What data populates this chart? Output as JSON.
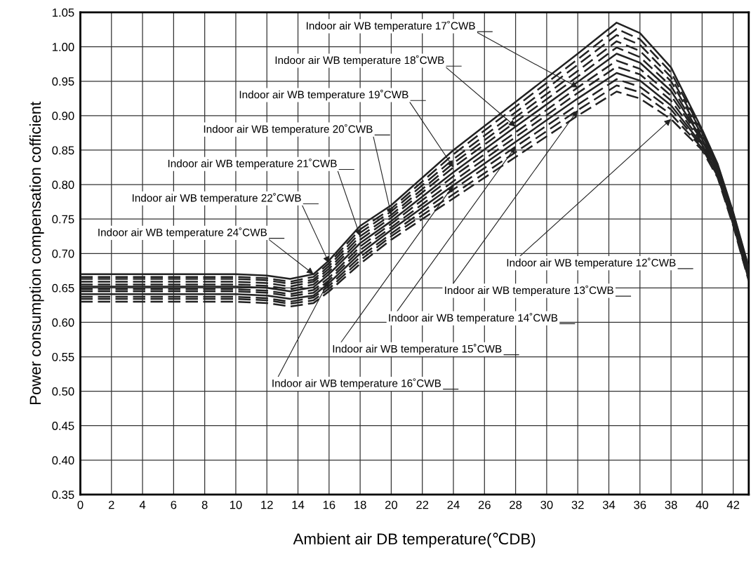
{
  "chart_data": {
    "type": "line",
    "xlabel": "Ambient air DB temperature(℃DB)",
    "ylabel": "Power consumption compensation cofficient",
    "x": [
      0,
      10,
      12,
      13.5,
      15,
      16,
      18,
      20,
      24,
      28,
      32,
      34.5,
      36,
      38,
      40,
      41,
      42,
      43
    ],
    "xlim": [
      0,
      43
    ],
    "xticks": [
      0,
      2,
      4,
      6,
      8,
      10,
      12,
      14,
      16,
      18,
      20,
      22,
      24,
      26,
      28,
      30,
      32,
      34,
      36,
      38,
      40,
      42
    ],
    "ylim": [
      0.35,
      1.05
    ],
    "yticks": [
      {
        "value": 0.35,
        "label": "0.35"
      },
      {
        "value": 0.4,
        "label": "0.40"
      },
      {
        "value": 0.45,
        "label": "0.45"
      },
      {
        "value": 0.5,
        "label": "0.50"
      },
      {
        "value": 0.55,
        "label": "0.55"
      },
      {
        "value": 0.6,
        "label": "0.60"
      },
      {
        "value": 0.65,
        "label": "0.65"
      },
      {
        "value": 0.7,
        "label": "0.70"
      },
      {
        "value": 0.75,
        "label": "0.75"
      },
      {
        "value": 0.8,
        "label": "0.80"
      },
      {
        "value": 0.85,
        "label": "0.85"
      },
      {
        "value": 0.9,
        "label": "0.90"
      },
      {
        "value": 0.95,
        "label": "0.95"
      },
      {
        "value": 1.0,
        "label": "1.00"
      },
      {
        "value": 1.05,
        "label": "1.05"
      }
    ],
    "grid": true,
    "legend": false,
    "annotations": [
      {
        "text": "Indoor air WB temperature 24˚CWB",
        "x": 15,
        "y": 0.67
      },
      {
        "text": "Indoor air WB temperature 22˚CWB",
        "x": 16,
        "y": 0.686
      },
      {
        "text": "Indoor air WB temperature 21˚CWB",
        "x": 18,
        "y": 0.725
      },
      {
        "text": "Indoor air WB temperature 20˚CWB",
        "x": 20,
        "y": 0.756
      },
      {
        "text": "Indoor air WB temperature 19˚CWB",
        "x": 24,
        "y": 0.825
      },
      {
        "text": "Indoor air WB temperature 18˚CWB",
        "x": 28,
        "y": 0.884
      },
      {
        "text": "Indoor air WB temperature 17˚CWB",
        "x": 32,
        "y": 0.941
      },
      {
        "text": "Indoor air WB temperature 16˚CWB",
        "x": 16,
        "y": 0.661
      },
      {
        "text": "Indoor air WB temperature 15˚CWB",
        "x": 24,
        "y": 0.799
      },
      {
        "text": "Indoor air WB temperature 14˚CWB",
        "x": 28,
        "y": 0.855
      },
      {
        "text": "Indoor air WB temperature 13˚CWB",
        "x": 32,
        "y": 0.908
      },
      {
        "text": "Indoor air WB temperature 12˚CWB",
        "x": 38,
        "y": 0.895
      }
    ],
    "series": [
      {
        "color": "#222222",
        "line_style": "solid",
        "values": [
          0.67,
          0.67,
          0.668,
          0.663,
          0.67,
          0.69,
          0.74,
          0.77,
          0.85,
          0.92,
          0.99,
          1.035,
          1.02,
          0.97,
          0.88,
          0.83,
          0.76,
          0.68
        ]
      },
      {
        "color": "#222222",
        "line_style": "dashed",
        "values": [
          0.666,
          0.666,
          0.664,
          0.659,
          0.666,
          0.686,
          0.735,
          0.765,
          0.844,
          0.913,
          0.982,
          1.026,
          1.011,
          0.963,
          0.877,
          0.828,
          0.758,
          0.678
        ]
      },
      {
        "color": "#222222",
        "line_style": "dashed",
        "values": [
          0.663,
          0.663,
          0.661,
          0.656,
          0.662,
          0.682,
          0.73,
          0.761,
          0.837,
          0.905,
          0.974,
          1.017,
          1.003,
          0.956,
          0.875,
          0.826,
          0.756,
          0.676
        ]
      },
      {
        "color": "#222222",
        "line_style": "dashed",
        "values": [
          0.659,
          0.659,
          0.657,
          0.652,
          0.659,
          0.678,
          0.725,
          0.756,
          0.831,
          0.898,
          0.965,
          1.008,
          0.994,
          0.95,
          0.872,
          0.825,
          0.755,
          0.675
        ]
      },
      {
        "color": "#222222",
        "line_style": "dashed",
        "values": [
          0.655,
          0.655,
          0.653,
          0.648,
          0.655,
          0.674,
          0.72,
          0.752,
          0.825,
          0.891,
          0.957,
          0.999,
          0.985,
          0.943,
          0.869,
          0.823,
          0.753,
          0.673
        ]
      },
      {
        "color": "#222222",
        "line_style": "solid",
        "values": [
          0.652,
          0.652,
          0.65,
          0.645,
          0.651,
          0.67,
          0.715,
          0.747,
          0.818,
          0.884,
          0.949,
          0.99,
          0.977,
          0.936,
          0.866,
          0.821,
          0.751,
          0.671
        ]
      },
      {
        "color": "#222222",
        "line_style": "dashed",
        "values": [
          0.648,
          0.648,
          0.646,
          0.641,
          0.647,
          0.665,
          0.71,
          0.743,
          0.812,
          0.876,
          0.941,
          0.98,
          0.968,
          0.929,
          0.864,
          0.819,
          0.749,
          0.669
        ]
      },
      {
        "color": "#222222",
        "line_style": "dashed",
        "values": [
          0.645,
          0.645,
          0.643,
          0.638,
          0.643,
          0.661,
          0.705,
          0.738,
          0.805,
          0.869,
          0.933,
          0.971,
          0.96,
          0.922,
          0.861,
          0.817,
          0.747,
          0.667
        ]
      },
      {
        "color": "#222222",
        "line_style": "solid",
        "values": [
          0.641,
          0.641,
          0.639,
          0.634,
          0.639,
          0.657,
          0.7,
          0.734,
          0.799,
          0.862,
          0.925,
          0.962,
          0.951,
          0.915,
          0.858,
          0.815,
          0.745,
          0.665
        ]
      },
      {
        "color": "#222222",
        "line_style": "dashed",
        "values": [
          0.637,
          0.637,
          0.635,
          0.63,
          0.636,
          0.653,
          0.695,
          0.729,
          0.793,
          0.855,
          0.916,
          0.953,
          0.942,
          0.909,
          0.855,
          0.814,
          0.744,
          0.664
        ]
      },
      {
        "color": "#222222",
        "line_style": "dashed",
        "values": [
          0.634,
          0.634,
          0.632,
          0.627,
          0.632,
          0.649,
          0.69,
          0.725,
          0.786,
          0.847,
          0.908,
          0.944,
          0.934,
          0.902,
          0.853,
          0.812,
          0.742,
          0.662
        ]
      },
      {
        "color": "#222222",
        "line_style": "dashed",
        "values": [
          0.63,
          0.63,
          0.628,
          0.623,
          0.628,
          0.645,
          0.685,
          0.72,
          0.78,
          0.84,
          0.9,
          0.935,
          0.925,
          0.895,
          0.85,
          0.81,
          0.74,
          0.66
        ]
      }
    ]
  }
}
